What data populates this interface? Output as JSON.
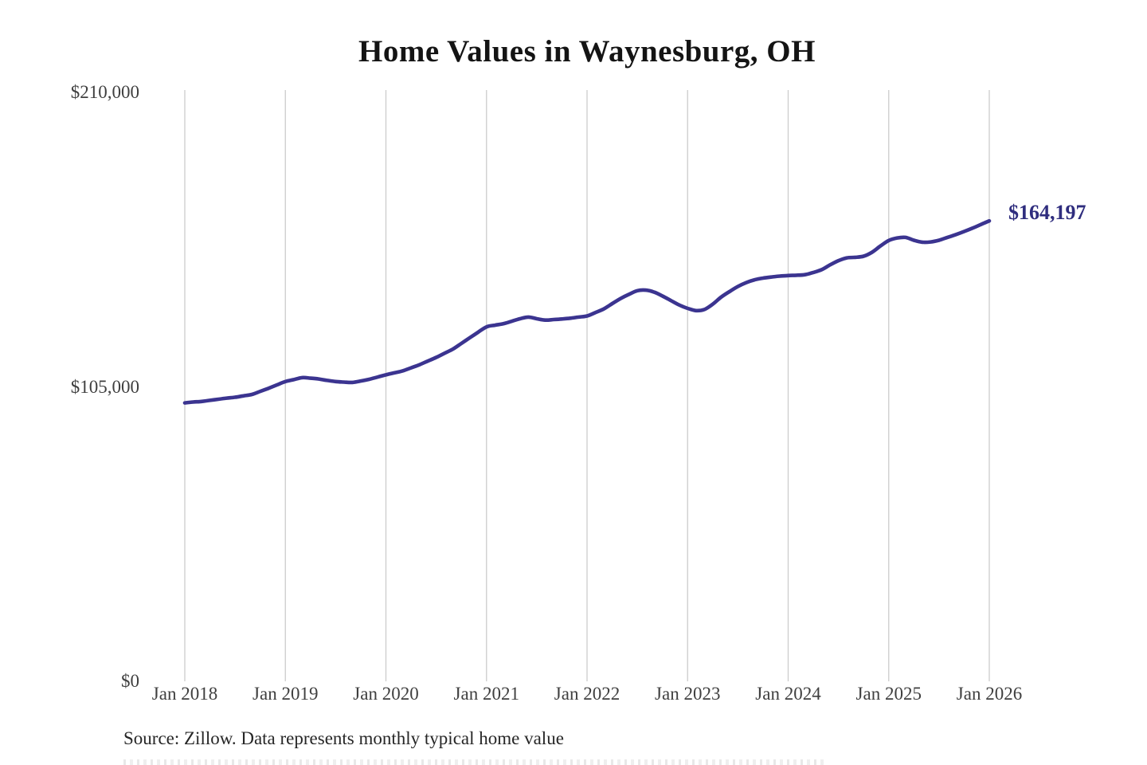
{
  "title": "Home Values in Waynesburg, OH",
  "end_label": "$164,197",
  "source_note": "Source: Zillow. Data represents monthly typical home value",
  "colors": {
    "line": "#3b3490",
    "end_label": "#2f2d7e",
    "grid": "#cccccc",
    "axis_text": "#3f3f3f",
    "title_text": "#141414"
  },
  "y_axis": {
    "ticks": [
      {
        "label": "$210,000",
        "value": 210000
      },
      {
        "label": "$105,000",
        "value": 105000
      },
      {
        "label": "$0",
        "value": 0
      }
    ]
  },
  "x_axis": {
    "ticks": [
      {
        "label": "Jan 2018",
        "month": 0
      },
      {
        "label": "Jan 2019",
        "month": 12
      },
      {
        "label": "Jan 2020",
        "month": 24
      },
      {
        "label": "Jan 2021",
        "month": 36
      },
      {
        "label": "Jan 2022",
        "month": 48
      },
      {
        "label": "Jan 2023",
        "month": 60
      },
      {
        "label": "Jan 2024",
        "month": 72
      },
      {
        "label": "Jan 2025",
        "month": 84
      },
      {
        "label": "Jan 2026",
        "month": 96
      }
    ]
  },
  "chart_data": {
    "type": "line",
    "title": "Home Values in Waynesburg, OH",
    "series_name": "Typical home value (USD)",
    "x_start": "2018-01",
    "x_end": "2026-01",
    "x_interval": "monthly",
    "ylim": [
      0,
      210000
    ],
    "grid": "vertical-yearly",
    "legend": "none",
    "final_value": 164197,
    "values": [
      99300,
      99600,
      99800,
      100200,
      100600,
      101000,
      101300,
      101800,
      102300,
      103400,
      104500,
      105700,
      106900,
      107600,
      108300,
      108100,
      107800,
      107300,
      106900,
      106700,
      106600,
      107100,
      107700,
      108500,
      109300,
      110000,
      110700,
      111800,
      112900,
      114200,
      115500,
      117000,
      118500,
      120500,
      122500,
      124500,
      126400,
      127000,
      127500,
      128400,
      129300,
      129900,
      129300,
      128800,
      129000,
      129200,
      129500,
      129900,
      130300,
      131500,
      132800,
      134700,
      136500,
      138000,
      139300,
      139500,
      138800,
      137400,
      135800,
      134200,
      133000,
      132200,
      132600,
      134500,
      137000,
      139000,
      140800,
      142200,
      143200,
      143800,
      144200,
      144500,
      144700,
      144800,
      145000,
      145800,
      146800,
      148500,
      150000,
      151000,
      151200,
      151600,
      153000,
      155200,
      157200,
      158100,
      158300,
      157300,
      156600,
      156700,
      157300,
      158300,
      159300,
      160400,
      161600,
      162900,
      164197
    ]
  }
}
